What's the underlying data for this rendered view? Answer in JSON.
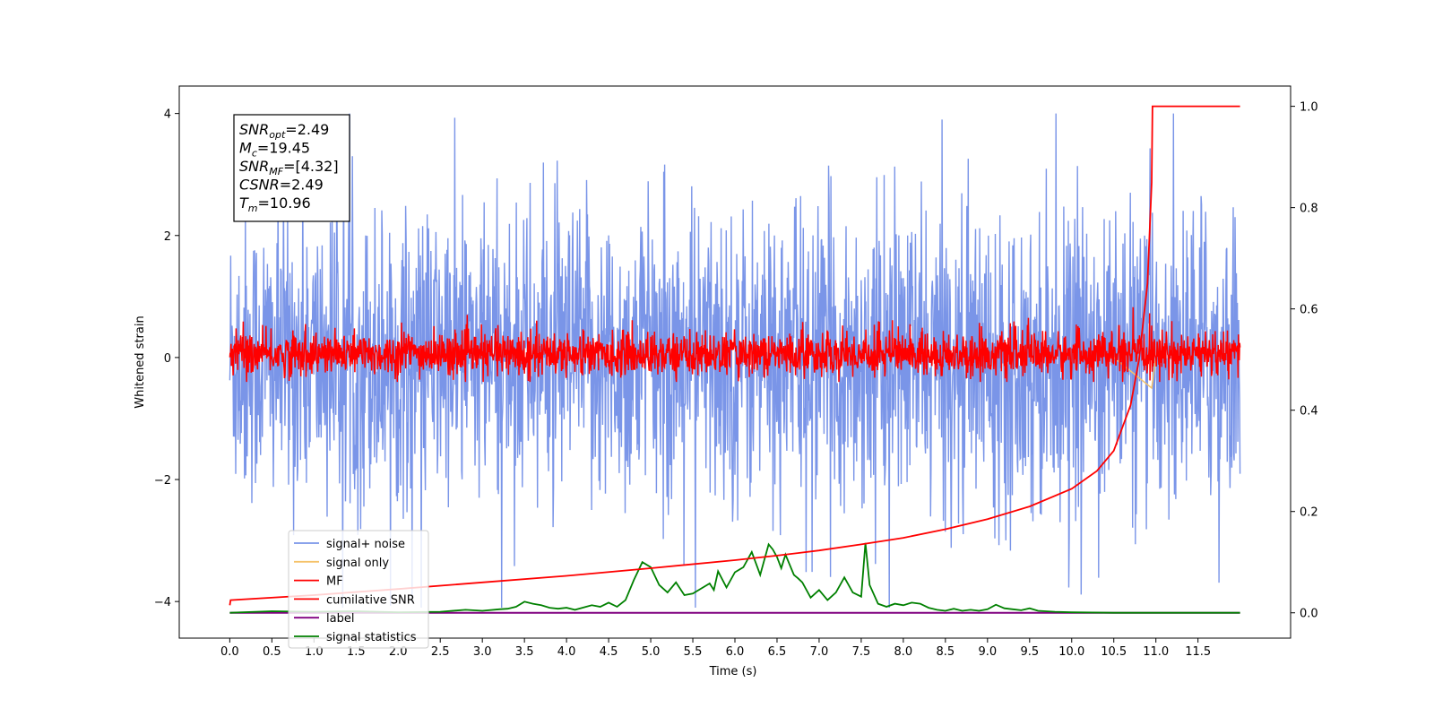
{
  "chart_data": {
    "type": "line",
    "xlabel": "Time (s)",
    "ylabel": "Whitened strain",
    "xlim": [
      -0.6,
      12.6
    ],
    "ylim": [
      -4.6,
      4.45
    ],
    "y2lim": [
      -0.05,
      1.04
    ],
    "x_ticks": [
      "0.0",
      "0.5",
      "1.0",
      "1.5",
      "2.0",
      "2.5",
      "3.0",
      "3.5",
      "4.0",
      "4.5",
      "5.0",
      "5.5",
      "6.0",
      "6.5",
      "7.0",
      "7.5",
      "8.0",
      "8.5",
      "9.0",
      "9.5",
      "10.0",
      "10.5",
      "11.0",
      "11.5"
    ],
    "y_ticks": [
      "4",
      "2",
      "0",
      "−2",
      "−4"
    ],
    "y2_ticks": [
      "1.0",
      "0.8",
      "0.6",
      "0.4",
      "0.2",
      "0.0"
    ],
    "grid": false,
    "legend_position": "lower-left",
    "annotation_box": {
      "lines": [
        {
          "sym": "SNR",
          "sub": "opt",
          "val": "=2.49"
        },
        {
          "sym": "M",
          "sub": "c",
          "val": "=19.45"
        },
        {
          "sym": "SNR",
          "sub": "MF",
          "val": "=[4.32]"
        },
        {
          "sym": "CSNR",
          "sub": "",
          "val": "=2.49"
        },
        {
          "sym": "T",
          "sub": "m",
          "val": "=10.96"
        }
      ]
    },
    "series": [
      {
        "name": "signal+ noise",
        "color": "#7a95e8",
        "axis": "left",
        "kind": "noise",
        "x_range": [
          0.0,
          12.0
        ],
        "amplitude_range": [
          -4.1,
          4.0
        ]
      },
      {
        "name": "signal only",
        "color": "#f5c36b",
        "axis": "left",
        "kind": "chirp",
        "x_range": [
          10.5,
          11.0
        ],
        "values": [
          [
            10.5,
            0.0
          ],
          [
            10.95,
            -0.5
          ],
          [
            11.0,
            0.0
          ]
        ]
      },
      {
        "name": "MF",
        "color": "#ff0000",
        "axis": "left",
        "kind": "noise",
        "x_range": [
          0.0,
          12.0
        ],
        "amplitude_range": [
          -0.4,
          0.85
        ]
      },
      {
        "name": "cumilative SNR",
        "color": "#ff0000",
        "axis": "right",
        "x": [
          0.0,
          0.01,
          1.0,
          2.0,
          3.0,
          4.0,
          5.0,
          6.0,
          6.5,
          7.0,
          7.5,
          8.0,
          8.5,
          9.0,
          9.5,
          10.0,
          10.3,
          10.5,
          10.7,
          10.8,
          10.9,
          10.95,
          10.96,
          11.0,
          11.5,
          12.0
        ],
        "values": [
          0.015,
          0.025,
          0.035,
          0.047,
          0.06,
          0.073,
          0.088,
          0.104,
          0.113,
          0.123,
          0.135,
          0.148,
          0.165,
          0.185,
          0.21,
          0.245,
          0.28,
          0.32,
          0.41,
          0.5,
          0.65,
          0.85,
          1.0,
          1.0,
          1.0,
          1.0
        ]
      },
      {
        "name": "label",
        "color": "#800080",
        "axis": "right",
        "x": [
          0.0,
          12.0
        ],
        "values": [
          0.0,
          0.0
        ]
      },
      {
        "name": "signal statistics",
        "color": "#008000",
        "axis": "right",
        "x": [
          0.0,
          0.5,
          1.0,
          1.5,
          2.0,
          2.5,
          2.8,
          3.0,
          3.2,
          3.3,
          3.4,
          3.5,
          3.6,
          3.7,
          3.8,
          3.9,
          4.0,
          4.1,
          4.3,
          4.4,
          4.5,
          4.6,
          4.7,
          4.8,
          4.9,
          5.0,
          5.1,
          5.2,
          5.3,
          5.4,
          5.5,
          5.6,
          5.7,
          5.75,
          5.8,
          5.9,
          6.0,
          6.1,
          6.2,
          6.3,
          6.4,
          6.45,
          6.5,
          6.55,
          6.6,
          6.7,
          6.75,
          6.8,
          6.9,
          7.0,
          7.1,
          7.2,
          7.3,
          7.4,
          7.5,
          7.55,
          7.6,
          7.7,
          7.8,
          7.9,
          8.0,
          8.1,
          8.2,
          8.3,
          8.4,
          8.5,
          8.6,
          8.7,
          8.8,
          8.9,
          9.0,
          9.1,
          9.2,
          9.3,
          9.4,
          9.5,
          9.6,
          9.8,
          10.0,
          10.5,
          11.0,
          11.5,
          12.0
        ],
        "values": [
          0.0,
          0.003,
          0.002,
          0.003,
          0.001,
          0.002,
          0.006,
          0.004,
          0.007,
          0.008,
          0.012,
          0.022,
          0.018,
          0.015,
          0.01,
          0.008,
          0.01,
          0.006,
          0.015,
          0.012,
          0.02,
          0.012,
          0.025,
          0.065,
          0.1,
          0.09,
          0.055,
          0.04,
          0.06,
          0.035,
          0.038,
          0.048,
          0.058,
          0.045,
          0.082,
          0.05,
          0.08,
          0.09,
          0.12,
          0.075,
          0.135,
          0.125,
          0.11,
          0.088,
          0.115,
          0.075,
          0.068,
          0.06,
          0.03,
          0.045,
          0.025,
          0.04,
          0.07,
          0.04,
          0.032,
          0.138,
          0.055,
          0.018,
          0.012,
          0.018,
          0.015,
          0.02,
          0.018,
          0.01,
          0.006,
          0.004,
          0.008,
          0.004,
          0.006,
          0.004,
          0.007,
          0.016,
          0.009,
          0.007,
          0.005,
          0.009,
          0.004,
          0.002,
          0.001,
          0.0,
          0.0,
          0.0,
          0.0
        ]
      }
    ]
  }
}
